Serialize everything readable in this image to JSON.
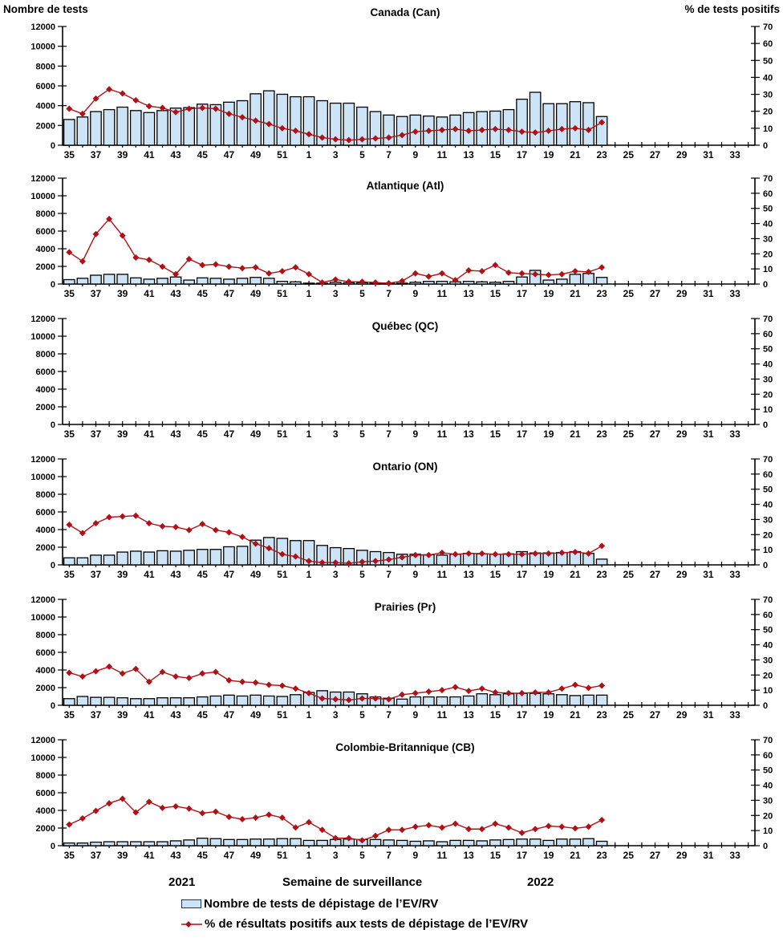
{
  "colors": {
    "bar_fill": "#CCE4F6",
    "bar_stroke": "#000000",
    "line": "#B01116",
    "axis": "#000000"
  },
  "x_axis_footer": {
    "year_left": "2021",
    "title": "Semaine de surveillance",
    "year_right": "2022"
  },
  "legend": {
    "tests_label": "Nombre de tests de dépistage de l’EV/RV",
    "positivity_label": "% de résultats positifs aux tests de dépistage de l’EV/RV"
  },
  "chart_data": {
    "type": "bar",
    "subtype": "multi-panel bar + line combo, dual y-axes",
    "left_axis": {
      "title": "Nombre de tests",
      "min": 0,
      "max": 12000,
      "step": 2000
    },
    "right_axis": {
      "title": "% de tests positifs",
      "min": 0,
      "max": 70,
      "step": 10
    },
    "x_week_slots": [
      35,
      36,
      37,
      38,
      39,
      40,
      41,
      42,
      43,
      44,
      45,
      46,
      47,
      48,
      49,
      50,
      51,
      52,
      1,
      2,
      3,
      4,
      5,
      6,
      7,
      8,
      9,
      10,
      11,
      12,
      13,
      14,
      15,
      16,
      17,
      18,
      19,
      20,
      21,
      22,
      23,
      24,
      25,
      26,
      27,
      28,
      29,
      30,
      31,
      32,
      33,
      34
    ],
    "x_visible_tick_labels": [
      "35",
      "37",
      "39",
      "41",
      "43",
      "45",
      "47",
      "49",
      "51",
      "1",
      "3",
      "5",
      "7",
      "9",
      "11",
      "13",
      "15",
      "17",
      "19",
      "21",
      "23",
      "25",
      "27",
      "29",
      "31",
      "33"
    ],
    "bar_series_name": "Nombre de tests de dépistage de l’EV/RV",
    "line_series_name": "% de résultats positifs aux tests de dépistage de l’EV/RV",
    "panels": [
      {
        "title": "Canada (Can)",
        "bar_values": [
          2600,
          2850,
          3400,
          3600,
          3850,
          3500,
          3300,
          3500,
          3750,
          3800,
          4150,
          4100,
          4350,
          4500,
          5200,
          5500,
          5150,
          4900,
          4900,
          4500,
          4250,
          4250,
          3850,
          3400,
          3050,
          2900,
          3050,
          2950,
          2850,
          3050,
          3300,
          3400,
          3450,
          3600,
          4650,
          5350,
          4200,
          4200,
          4400,
          4300,
          2900
        ],
        "line_values": [
          21.5,
          18.5,
          27.5,
          33,
          30.5,
          26.5,
          23,
          22,
          19.5,
          21.5,
          22,
          21.5,
          18.5,
          16.5,
          14.5,
          12.5,
          10,
          8.5,
          6.5,
          4.5,
          3.5,
          3,
          3.5,
          4,
          4.5,
          6,
          8,
          8.5,
          9,
          9.5,
          8.5,
          9,
          9.5,
          9,
          8,
          7.5,
          8.5,
          9.5,
          10,
          9,
          13.5
        ]
      },
      {
        "title": "Atlantique (Atl)",
        "bar_values": [
          500,
          650,
          1000,
          1100,
          1100,
          700,
          550,
          650,
          800,
          450,
          700,
          650,
          550,
          650,
          750,
          650,
          300,
          250,
          100,
          100,
          200,
          150,
          150,
          100,
          100,
          100,
          200,
          300,
          300,
          250,
          300,
          250,
          200,
          300,
          800,
          1550,
          450,
          550,
          1100,
          1200,
          750
        ],
        "line_values": [
          21,
          15,
          33,
          43,
          32,
          17.5,
          16,
          11.5,
          6.5,
          16.5,
          12.5,
          13,
          11.5,
          10.5,
          11,
          7,
          8.5,
          11,
          6.5,
          1,
          3,
          1.5,
          1.5,
          1,
          0.5,
          2,
          7,
          5,
          7,
          2.5,
          9,
          8.5,
          12.5,
          7.5,
          7,
          6.5,
          6,
          6.5,
          8.5,
          8,
          11
        ]
      },
      {
        "title": "Québec (QC)",
        "bar_values": [],
        "line_values": []
      },
      {
        "title": "Ontario (ON)",
        "bar_values": [
          800,
          800,
          1100,
          1100,
          1450,
          1550,
          1450,
          1600,
          1550,
          1650,
          1750,
          1750,
          2050,
          2100,
          2800,
          3100,
          3000,
          2750,
          2750,
          2200,
          1950,
          1850,
          1650,
          1500,
          1400,
          1200,
          1200,
          1150,
          1100,
          1200,
          1300,
          1250,
          1200,
          1250,
          1500,
          1350,
          1350,
          1400,
          1500,
          1300,
          650
        ],
        "line_values": [
          26.5,
          21,
          27.5,
          31.5,
          32,
          32.5,
          27.5,
          25.5,
          25,
          23,
          27,
          23,
          21.5,
          18.5,
          14,
          11,
          7,
          5.5,
          2.5,
          1.5,
          1.5,
          1,
          2,
          2.5,
          3.5,
          5,
          6.5,
          6.5,
          8,
          7,
          7.5,
          7.5,
          7,
          7,
          7,
          7.5,
          7.5,
          8,
          8.5,
          7.5,
          12.5
        ]
      },
      {
        "title": "Prairies (Pr)",
        "bar_values": [
          750,
          1000,
          900,
          900,
          850,
          750,
          750,
          850,
          850,
          850,
          950,
          1050,
          1150,
          1050,
          1150,
          1050,
          1000,
          1200,
          1450,
          1650,
          1500,
          1500,
          1300,
          950,
          800,
          700,
          950,
          950,
          950,
          950,
          1050,
          1300,
          1200,
          1300,
          1350,
          1350,
          1300,
          1200,
          1100,
          1150,
          1150
        ],
        "line_values": [
          21.5,
          19,
          22.5,
          25.5,
          21,
          24,
          15.5,
          22,
          19,
          18,
          21,
          22,
          16.5,
          15.5,
          15,
          13.5,
          13,
          11,
          8,
          4.5,
          4,
          3.5,
          4.5,
          4.5,
          4,
          7,
          8,
          9,
          10,
          12,
          9.5,
          11,
          8.5,
          8,
          8,
          8.5,
          8.5,
          11,
          13.5,
          11.5,
          13
        ]
      },
      {
        "title": "Colombie-Britannique (CB)",
        "bar_values": [
          300,
          300,
          400,
          450,
          450,
          450,
          450,
          450,
          550,
          650,
          850,
          800,
          700,
          700,
          750,
          750,
          800,
          800,
          600,
          600,
          700,
          750,
          700,
          700,
          650,
          600,
          500,
          550,
          450,
          600,
          600,
          550,
          650,
          700,
          750,
          750,
          600,
          750,
          750,
          800,
          500
        ],
        "line_values": [
          14,
          18,
          23,
          28,
          31,
          22,
          29,
          25,
          26,
          24.5,
          21.5,
          22.5,
          19,
          17.5,
          18.5,
          20.5,
          18.5,
          12,
          15.5,
          10.5,
          5,
          5,
          3.5,
          6.5,
          10.5,
          10.5,
          12.5,
          13.5,
          12,
          14.5,
          11,
          11,
          14.5,
          12,
          8.5,
          11,
          13,
          12.5,
          11.5,
          12.5,
          17
        ]
      }
    ]
  }
}
